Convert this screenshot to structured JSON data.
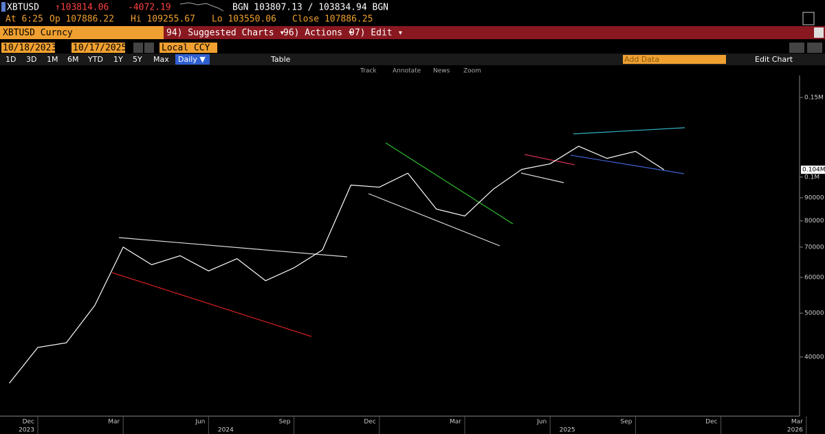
{
  "header": {
    "ticker": "XBTUSD",
    "last": "↑103814.06",
    "change": "-4072.19",
    "quote": "BGN 103807.13 / 103834.94 BGN",
    "at": "At 6:25",
    "open": "Op 107886.22",
    "high": "Hi 109255.67",
    "low": "Lo 103550.06",
    "close": "Close 107886.25"
  },
  "menu": {
    "security": "XBTUSD Curncy",
    "items": [
      "94) Suggested Charts ▾",
      "96) Actions ▾",
      "97) Edit ▾"
    ]
  },
  "controls": {
    "start_date": "10/18/2023",
    "end_date": "10/17/2025",
    "currency": "Local CCY",
    "periods": [
      "1D",
      "3D",
      "1M",
      "6M",
      "YTD",
      "1Y",
      "5Y",
      "Max"
    ],
    "frequency": "Daily ▼",
    "table": "Table",
    "add_data": "Add Data",
    "edit_chart": "Edit Chart"
  },
  "tools": [
    "Track",
    "Annotate",
    "News",
    "Zoom"
  ],
  "chart_data": {
    "type": "line",
    "log_scale": true,
    "color": "#ffffff",
    "x": [
      "2023-11",
      "2023-12",
      "2024-01",
      "2024-02",
      "2024-03",
      "2024-04",
      "2024-05",
      "2024-06",
      "2024-07",
      "2024-08",
      "2024-09",
      "2024-10",
      "2024-11",
      "2024-12",
      "2025-01",
      "2025-02",
      "2025-03",
      "2025-04",
      "2025-05",
      "2025-06",
      "2025-07",
      "2025-08",
      "2025-09",
      "2025-10"
    ],
    "values": [
      35000,
      42000,
      43000,
      52000,
      70000,
      64000,
      67000,
      62000,
      66000,
      59000,
      63000,
      69000,
      96000,
      95000,
      102000,
      85000,
      82000,
      94000,
      104000,
      107000,
      117000,
      110000,
      114000,
      103814.06
    ],
    "ylim": [
      29700,
      173700
    ],
    "yticks": [
      40000,
      50000,
      60000,
      70000,
      80000,
      90000,
      {
        "value": 100000,
        "label": "0.1M"
      },
      {
        "value": 150000,
        "label": "0.15M"
      }
    ],
    "last_price": {
      "value": 103814.06,
      "label": "0.104M"
    },
    "xticks": [
      {
        "value": "2023-12",
        "label": "Dec"
      },
      {
        "value": "2024-03",
        "label": "Mar"
      },
      {
        "value": "2024-06",
        "label": "Jun"
      },
      {
        "value": "2024-09",
        "label": "Sep"
      },
      {
        "value": "2024-12",
        "label": "Dec"
      },
      {
        "value": "2025-03",
        "label": "Mar"
      },
      {
        "value": "2025-06",
        "label": "Jun"
      },
      {
        "value": "2025-09",
        "label": "Sep"
      },
      {
        "value": "2025-12",
        "label": "Dec"
      },
      {
        "value": "2026-03",
        "label": "Mar"
      }
    ],
    "years": [
      {
        "value": "2023-12",
        "label": "2023"
      },
      {
        "value": "2024-07",
        "label": "2024"
      },
      {
        "value": "2025-07",
        "label": "2025"
      },
      {
        "value": "2026-03",
        "label": "2026"
      }
    ]
  }
}
